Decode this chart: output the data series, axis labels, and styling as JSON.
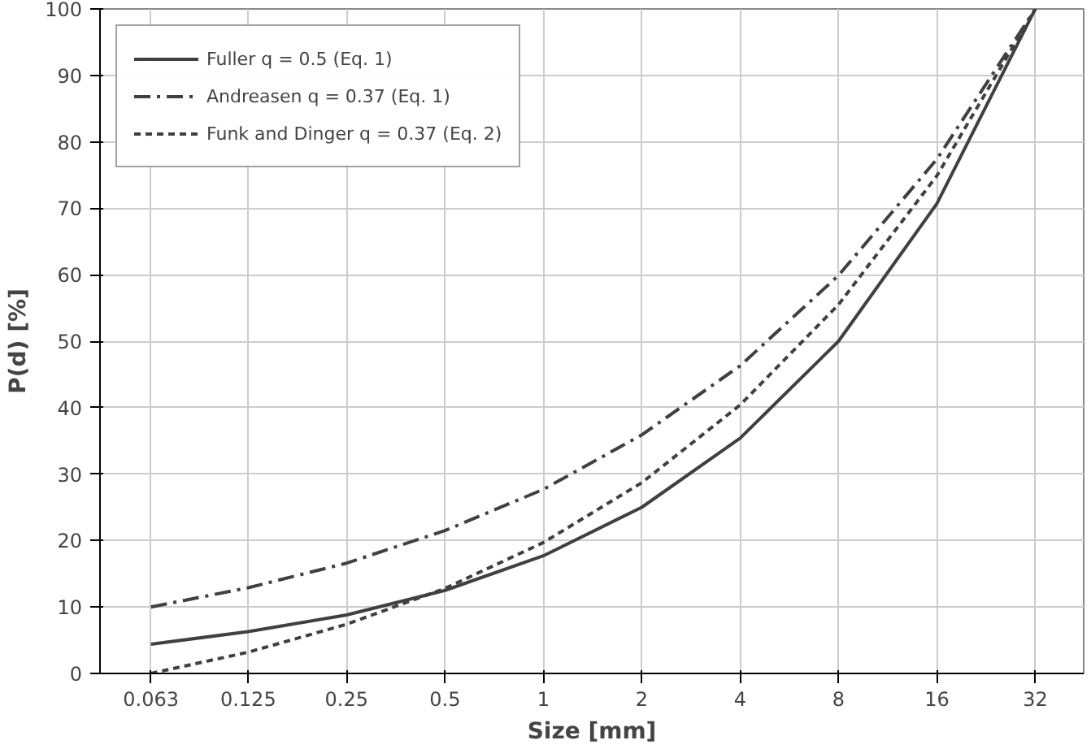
{
  "chart_data": {
    "type": "line",
    "xlabel": "Size [mm]",
    "ylabel": "P(d) [%]",
    "x": [
      0.063,
      0.125,
      0.25,
      0.5,
      1,
      2,
      4,
      8,
      16,
      32
    ],
    "series": [
      {
        "name": "Fuller q = 0.5 (Eq. 1)",
        "color": "#404040",
        "line_style": "solid",
        "values": [
          4.4,
          6.3,
          8.8,
          12.5,
          17.7,
          25,
          35.4,
          50,
          70.7,
          100
        ]
      },
      {
        "name": "Andreasen q = 0.37 (Eq. 1)",
        "color": "#404040",
        "line_style": "dashdot",
        "values": [
          10,
          12.9,
          16.6,
          21.5,
          27.7,
          35.9,
          46.3,
          59.9,
          77.4,
          100
        ]
      },
      {
        "name": "Funk and Dinger q = 0.37 (Eq. 2)",
        "color": "#404040",
        "line_style": "dashed",
        "values": [
          0,
          3.2,
          7.4,
          12.8,
          19.7,
          28.7,
          40.4,
          55.5,
          74.9,
          100
        ]
      }
    ],
    "log": "x",
    "xlim": [
      0.044,
      45
    ],
    "xticks": [
      0.063,
      0.125,
      0.25,
      0.5,
      1,
      2,
      4,
      8,
      16,
      32
    ],
    "ylim": [
      0,
      100
    ],
    "yticks": [
      0,
      10,
      20,
      30,
      40,
      50,
      60,
      70,
      80,
      90,
      100
    ],
    "grid": true,
    "legend": "top left",
    "marker": "none"
  }
}
